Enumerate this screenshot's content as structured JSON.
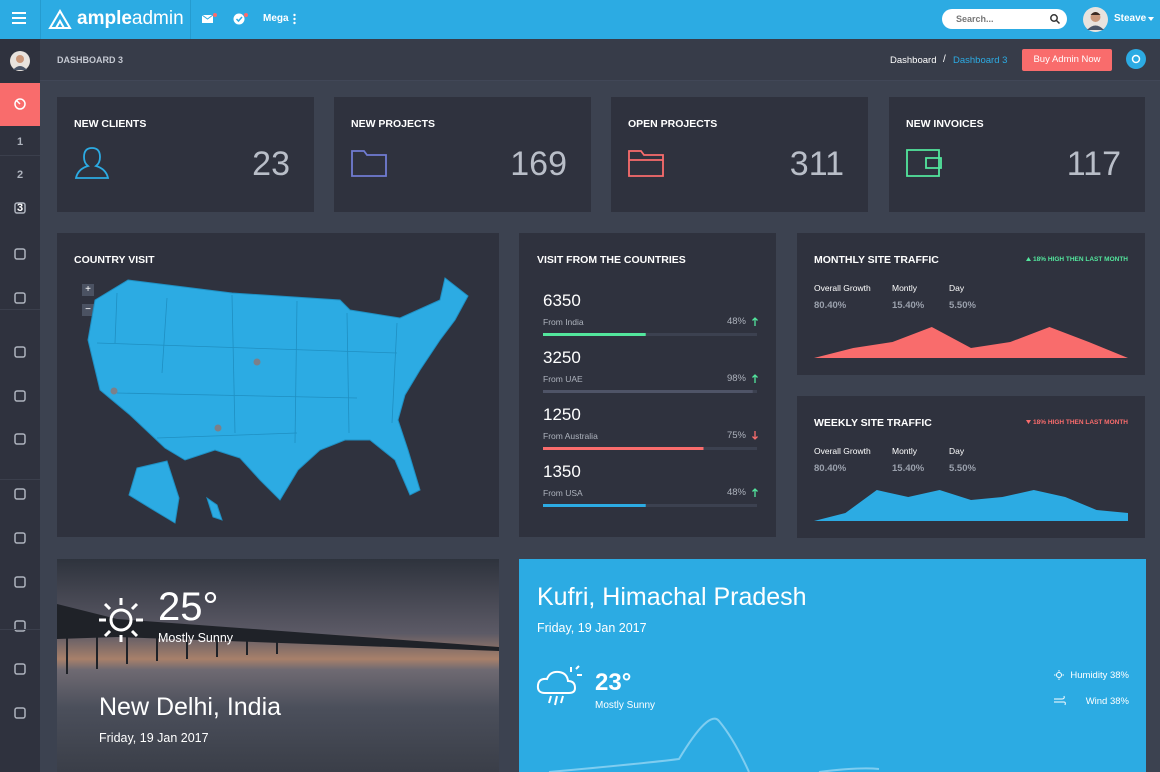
{
  "header": {
    "brand_bold": "ample",
    "brand_light": "admin",
    "menu": "Mega",
    "search_placeholder": "Search...",
    "user": "Steave"
  },
  "sidebar": {
    "items": [
      "1",
      "2",
      "3"
    ]
  },
  "breadcrumb": {
    "page_title": "DASHBOARD 3",
    "links": [
      "Dashboard",
      "Dashboard 3"
    ],
    "separator": "/",
    "button": "Buy Admin Now"
  },
  "stats": [
    {
      "title": "NEW CLIENTS",
      "value": "23",
      "color": "#2cabe3"
    },
    {
      "title": "NEW PROJECTS",
      "value": "169",
      "color": "#707cd2"
    },
    {
      "title": "OPEN PROJECTS",
      "value": "311",
      "color": "#f96c6c"
    },
    {
      "title": "NEW INVOICES",
      "value": "117",
      "color": "#53e69d"
    }
  ],
  "country_visit": {
    "title": "COUNTRY VISIT",
    "zoom": [
      "+",
      "−"
    ]
  },
  "visits": {
    "title": "VISIT FROM THE COUNTRIES",
    "rows": [
      {
        "value": "6350",
        "label": "From India",
        "percent": {
          "value": 48,
          "label": "48%"
        },
        "color": "#53e69d",
        "trend": "up"
      },
      {
        "value": "3250",
        "label": "From UAE",
        "percent": {
          "value": 98,
          "label": "98%"
        },
        "color": "#4f5467",
        "trend": "up"
      },
      {
        "value": "1250",
        "label": "From Australia",
        "percent": {
          "value": 75,
          "label": "75%"
        },
        "color": "#f96c6c",
        "trend": "down"
      },
      {
        "value": "1350",
        "label": "From USA",
        "percent": {
          "value": 48,
          "label": "48%"
        },
        "color": "#2cabe3",
        "trend": "up"
      }
    ]
  },
  "traffic": [
    {
      "title": "MONTHLY SITE TRAFFIC",
      "note": "18% HIGH THEN LAST MONTH",
      "trend": "up",
      "color": "#f96c6c",
      "stats": [
        {
          "label": "Overall Growth",
          "value": "80.40%"
        },
        {
          "label": "Montly",
          "value": "15.40%"
        },
        {
          "label": "Day",
          "value": "5.50%"
        }
      ],
      "values": [
        0,
        10,
        16,
        31,
        10,
        16,
        31,
        16,
        0
      ]
    },
    {
      "title": "WEEKLY SITE TRAFFIC",
      "note": "18% HIGH THEN LAST MONTH",
      "trend": "down",
      "color": "#2cabe3",
      "stats": [
        {
          "label": "Overall Growth",
          "value": "80.40%"
        },
        {
          "label": "Montly",
          "value": "15.40%"
        },
        {
          "label": "Day",
          "value": "5.50%"
        }
      ],
      "values": [
        0,
        8,
        31,
        24,
        31,
        21,
        24,
        31,
        24,
        11,
        8
      ]
    }
  ],
  "weather_city": {
    "temperature": "25°",
    "condition": "Mostly Sunny",
    "city": "New Delhi, India",
    "date": "Friday, 19 Jan 2017"
  },
  "weather_forecast": {
    "city": "Kufri, Himachal Pradesh",
    "date": "Friday, 19 Jan 2017",
    "temperature": "23°",
    "condition": "Mostly Sunny",
    "humidity": "Humidity 38%",
    "wind": "Wind 38%"
  }
}
